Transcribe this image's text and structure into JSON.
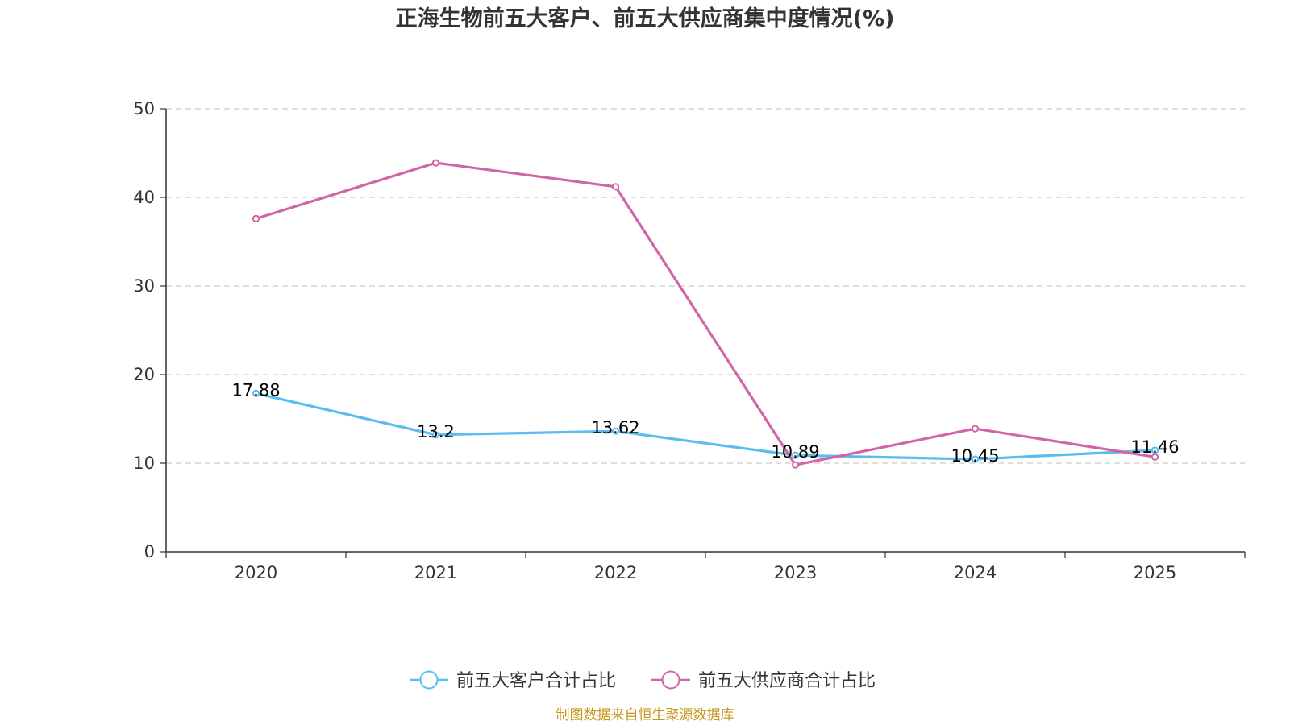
{
  "chart_data": {
    "type": "line",
    "title": "正海生物前五大客户、前五大供应商集中度情况(%)",
    "categories": [
      "2020",
      "2021",
      "2022",
      "2023",
      "2024",
      "2025"
    ],
    "ylim": [
      0,
      50
    ],
    "yticks": [
      0,
      10,
      20,
      30,
      40,
      50
    ],
    "grid": "horizontal-dashed",
    "legend_position": "bottom-center",
    "series": [
      {
        "name": "前五大客户合计占比",
        "color": "#5bbcf0",
        "values": [
          17.88,
          13.2,
          13.62,
          10.89,
          10.45,
          11.46
        ],
        "labels": [
          "17.88",
          "13.2",
          "13.62",
          "10.89",
          "10.45",
          "11.46"
        ]
      },
      {
        "name": "前五大供应商合计占比",
        "color": "#d264a8",
        "values": [
          37.6,
          43.9,
          41.2,
          9.8,
          13.9,
          10.7
        ]
      }
    ],
    "source": "制图数据来自恒生聚源数据库"
  }
}
